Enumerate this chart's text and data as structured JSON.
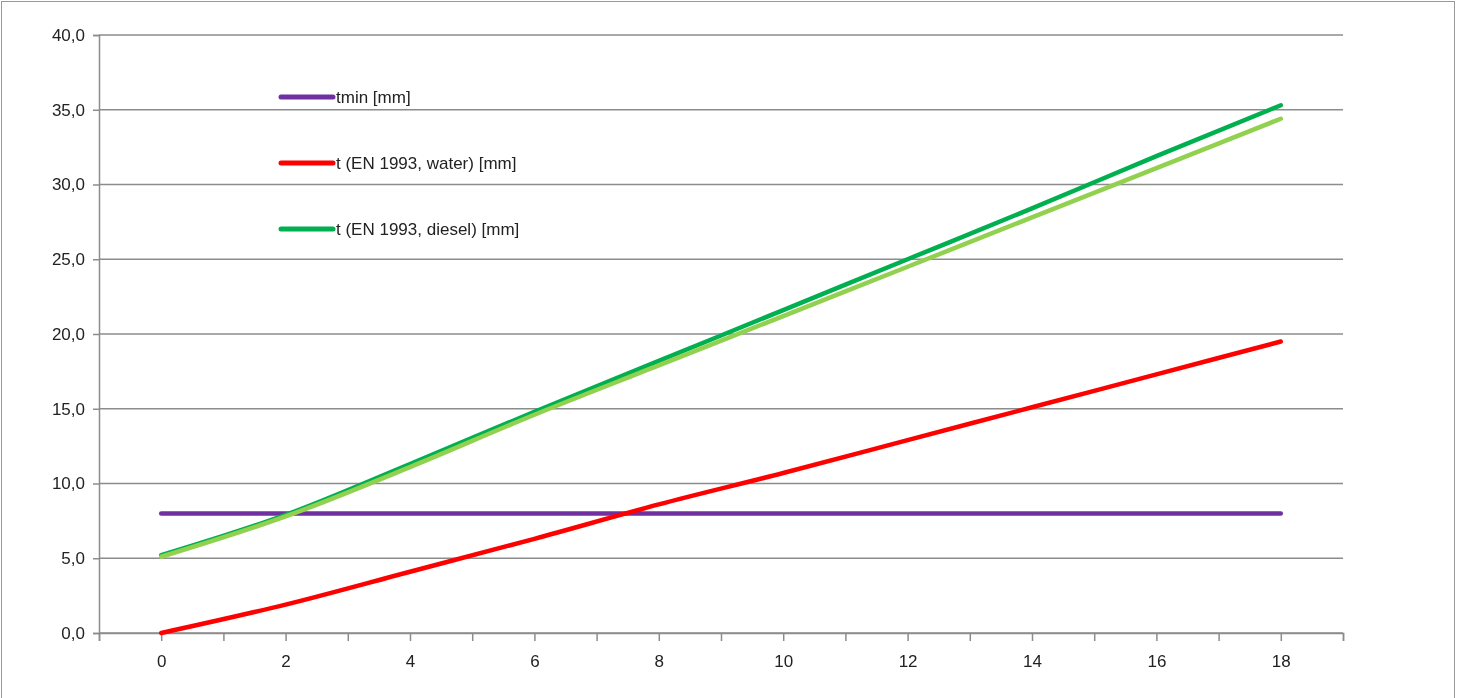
{
  "chart_data": {
    "type": "line",
    "x": [
      0,
      2,
      4,
      6,
      8,
      10,
      12,
      14,
      16,
      18
    ],
    "xlim": [
      -1,
      19
    ],
    "xticks": [
      {
        "value": -1,
        "label": null
      },
      0,
      {
        "value": 1,
        "label": null
      },
      2,
      {
        "value": 3,
        "label": null
      },
      4,
      {
        "value": 5,
        "label": null
      },
      6,
      {
        "value": 7,
        "label": null
      },
      8,
      {
        "value": 9,
        "label": null
      },
      10,
      {
        "value": 11,
        "label": null
      },
      12,
      {
        "value": 13,
        "label": null
      },
      14,
      {
        "value": 15,
        "label": null
      },
      16,
      {
        "value": 17,
        "label": null
      },
      18,
      {
        "value": 19,
        "label": null
      }
    ],
    "ylim": [
      0,
      40
    ],
    "yticks": [
      {
        "value": 0,
        "label": "0,0"
      },
      {
        "value": 5,
        "label": "5,0"
      },
      {
        "value": 10,
        "label": "10,0"
      },
      {
        "value": 15,
        "label": "15,0"
      },
      {
        "value": 20,
        "label": "20,0"
      },
      {
        "value": 25,
        "label": "25,0"
      },
      {
        "value": 30,
        "label": "30,0"
      },
      {
        "value": 35,
        "label": "35,0"
      },
      {
        "value": 40,
        "label": "40,0"
      }
    ],
    "grid": "y",
    "legend": "top left",
    "marker": "none",
    "line_style": "solid",
    "series": [
      {
        "name": "tmin [mm]",
        "color": "#7030a0",
        "values": [
          8.0,
          8.0,
          8.0,
          8.0,
          8.0,
          8.0,
          8.0,
          8.0,
          8.0,
          8.0
        ]
      },
      {
        "name": "t (EN 1993, water) [mm]",
        "color": "#ff0000",
        "values": [
          0.0,
          1.9,
          4.1,
          6.3,
          8.6,
          10.7,
          12.9,
          15.1,
          17.3,
          19.5
        ]
      },
      {
        "name": "t (EN 1993, diesel) [mm]",
        "color": "#00b050",
        "values": [
          5.2,
          7.9,
          11.3,
          14.8,
          18.2,
          21.6,
          25.0,
          28.4,
          31.9,
          35.3
        ]
      },
      {
        "color": "#92d050",
        "values": [
          5.1,
          7.8,
          11.1,
          14.6,
          17.9,
          21.2,
          24.5,
          27.8,
          31.1,
          34.4
        ]
      }
    ]
  }
}
